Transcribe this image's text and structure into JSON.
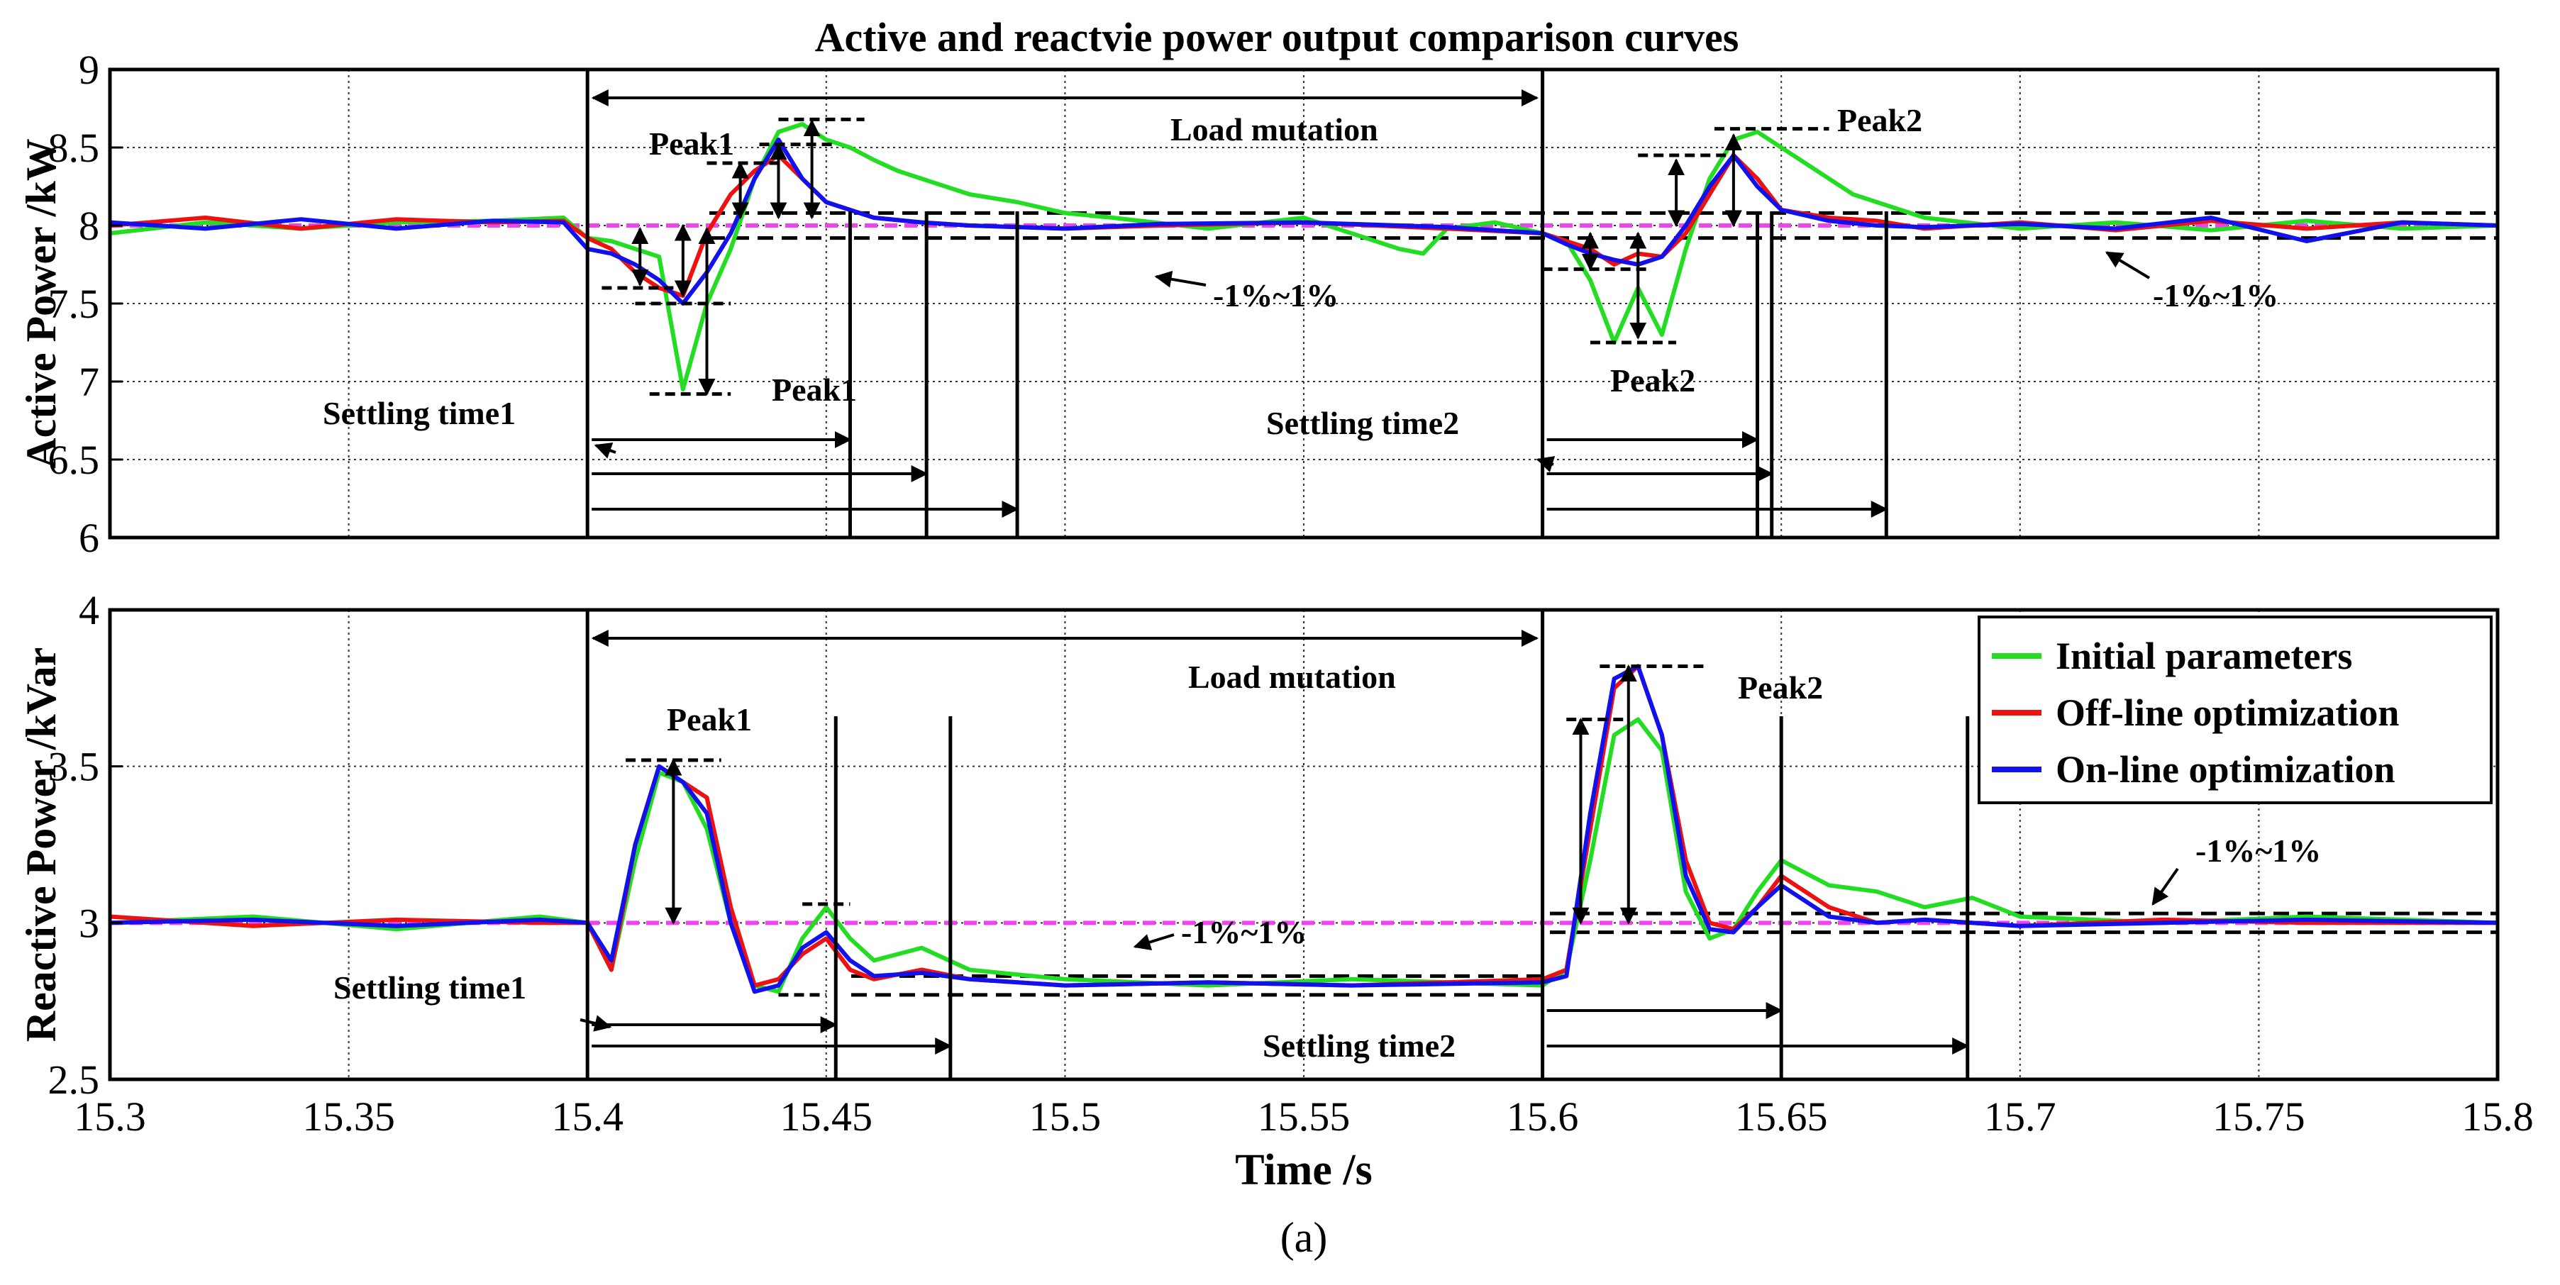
{
  "chart_data": {
    "type": "line",
    "title": "Active and reactvie power output comparison curves",
    "caption": "(a)",
    "xlabel": "Time /s",
    "x_ticks": [
      "15.3",
      "15.35",
      "15.4",
      "15.45",
      "15.5",
      "15.55",
      "15.6",
      "15.65",
      "15.7",
      "15.75",
      "15.8"
    ],
    "xlim": [
      15.3,
      15.8
    ],
    "grid": true,
    "legend": {
      "placement": "top-right of lower panel",
      "entries": [
        {
          "name": "Initial parameters",
          "color": "#22dd22"
        },
        {
          "name": "Off-line optimization",
          "color": "#ee1111"
        },
        {
          "name": "On-line optimization",
          "color": "#1111ee"
        }
      ]
    },
    "reference_color": "#ee44ee",
    "panels": [
      {
        "ylabel": "Active Power /kW",
        "ylim": [
          6,
          9
        ],
        "y_ticks": [
          "6",
          "6.5",
          "7",
          "7.5",
          "8",
          "8.5",
          "9"
        ],
        "reference": 8.0,
        "band": [
          7.92,
          8.08
        ],
        "series": [
          {
            "name": "Initial parameters",
            "color": "#22dd22",
            "x": [
              15.3,
              15.32,
              15.34,
              15.36,
              15.38,
              15.395,
              15.4,
              15.405,
              15.41,
              15.415,
              15.42,
              15.425,
              15.43,
              15.435,
              15.44,
              15.445,
              15.45,
              15.455,
              15.46,
              15.465,
              15.47,
              15.48,
              15.49,
              15.5,
              15.51,
              15.53,
              15.55,
              15.57,
              15.575,
              15.58,
              15.59,
              15.6,
              15.605,
              15.61,
              15.615,
              15.62,
              15.625,
              15.63,
              15.635,
              15.64,
              15.645,
              15.65,
              15.655,
              15.66,
              15.665,
              15.67,
              15.68,
              15.7,
              15.72,
              15.74,
              15.76,
              15.78,
              15.8
            ],
            "y": [
              7.95,
              8.02,
              7.98,
              8.02,
              8.03,
              8.05,
              7.92,
              7.9,
              7.85,
              7.8,
              6.95,
              7.5,
              7.85,
              8.3,
              8.6,
              8.65,
              8.55,
              8.5,
              8.42,
              8.35,
              8.3,
              8.2,
              8.15,
              8.08,
              8.05,
              7.98,
              8.05,
              7.85,
              7.82,
              7.98,
              8.02,
              7.95,
              7.9,
              7.65,
              7.25,
              7.6,
              7.3,
              7.85,
              8.3,
              8.55,
              8.6,
              8.5,
              8.4,
              8.3,
              8.2,
              8.15,
              8.05,
              7.98,
              8.02,
              7.97,
              8.03,
              7.98,
              8.0
            ]
          },
          {
            "name": "Off-line optimization",
            "color": "#ee1111",
            "x": [
              15.3,
              15.32,
              15.34,
              15.36,
              15.38,
              15.395,
              15.4,
              15.405,
              15.41,
              15.415,
              15.42,
              15.425,
              15.43,
              15.435,
              15.44,
              15.445,
              15.45,
              15.455,
              15.46,
              15.47,
              15.48,
              15.5,
              15.52,
              15.55,
              15.58,
              15.6,
              15.605,
              15.61,
              15.615,
              15.62,
              15.625,
              15.63,
              15.635,
              15.64,
              15.645,
              15.65,
              15.66,
              15.67,
              15.68,
              15.7,
              15.72,
              15.74,
              15.76,
              15.78,
              15.8
            ],
            "y": [
              8.0,
              8.05,
              7.98,
              8.04,
              8.02,
              8.03,
              7.92,
              7.85,
              7.7,
              7.6,
              7.55,
              7.95,
              8.2,
              8.35,
              8.45,
              8.3,
              8.15,
              8.1,
              8.05,
              8.02,
              8.0,
              7.98,
              8.0,
              8.02,
              7.98,
              7.95,
              7.9,
              7.85,
              7.75,
              7.82,
              7.8,
              7.95,
              8.2,
              8.45,
              8.3,
              8.1,
              8.05,
              8.03,
              7.98,
              8.02,
              7.97,
              8.03,
              7.98,
              8.02,
              8.0
            ]
          },
          {
            "name": "On-line optimization",
            "color": "#1111ee",
            "x": [
              15.3,
              15.32,
              15.34,
              15.36,
              15.38,
              15.395,
              15.4,
              15.405,
              15.41,
              15.415,
              15.42,
              15.425,
              15.43,
              15.435,
              15.44,
              15.445,
              15.45,
              15.455,
              15.46,
              15.47,
              15.48,
              15.5,
              15.52,
              15.55,
              15.58,
              15.6,
              15.605,
              15.61,
              15.615,
              15.62,
              15.625,
              15.63,
              15.635,
              15.64,
              15.645,
              15.65,
              15.66,
              15.67,
              15.68,
              15.7,
              15.72,
              15.74,
              15.76,
              15.78,
              15.8
            ],
            "y": [
              8.02,
              7.98,
              8.04,
              7.98,
              8.03,
              8.02,
              7.85,
              7.82,
              7.75,
              7.65,
              7.5,
              7.7,
              7.95,
              8.3,
              8.55,
              8.3,
              8.15,
              8.1,
              8.05,
              8.02,
              8.0,
              7.98,
              8.01,
              8.02,
              7.99,
              7.95,
              7.88,
              7.82,
              7.78,
              7.75,
              7.8,
              8.0,
              8.25,
              8.45,
              8.25,
              8.1,
              8.03,
              8.0,
              7.99,
              8.01,
              7.98,
              8.05,
              7.9,
              8.02,
              8.0
            ]
          }
        ],
        "annotations": {
          "load_mutation": "Load mutation",
          "peak1_upper": "Peak1",
          "peak1_lower": "Peak1",
          "peak2_upper": "Peak2",
          "peak2_lower": "Peak2",
          "band1": "-1%~1%",
          "band2": "-1%~1%",
          "settling1": "Settling time1",
          "settling2": "Settling time2"
        }
      },
      {
        "ylabel": "Reactive Power /kVar",
        "ylim": [
          2.5,
          4
        ],
        "y_ticks": [
          "2.5",
          "3",
          "3.5",
          "4"
        ],
        "reference": 3.0,
        "band1": [
          2.77,
          2.83
        ],
        "band2": [
          2.97,
          3.03
        ],
        "series": [
          {
            "name": "Initial parameters",
            "color": "#22dd22",
            "x": [
              15.3,
              15.33,
              15.36,
              15.39,
              15.4,
              15.405,
              15.41,
              15.415,
              15.42,
              15.425,
              15.43,
              15.435,
              15.44,
              15.445,
              15.45,
              15.455,
              15.46,
              15.47,
              15.48,
              15.5,
              15.53,
              15.56,
              15.6,
              15.605,
              15.61,
              15.615,
              15.62,
              15.625,
              15.63,
              15.635,
              15.64,
              15.645,
              15.65,
              15.66,
              15.67,
              15.68,
              15.69,
              15.7,
              15.73,
              15.76,
              15.8
            ],
            "y": [
              3.0,
              3.02,
              2.98,
              3.02,
              3.0,
              2.85,
              3.2,
              3.48,
              3.45,
              3.3,
              3.0,
              2.8,
              2.78,
              2.95,
              3.05,
              2.95,
              2.88,
              2.92,
              2.85,
              2.82,
              2.8,
              2.82,
              2.8,
              2.85,
              3.2,
              3.6,
              3.65,
              3.55,
              3.1,
              2.95,
              2.98,
              3.1,
              3.2,
              3.12,
              3.1,
              3.05,
              3.08,
              3.02,
              3.0,
              3.02,
              3.0
            ]
          },
          {
            "name": "Off-line optimization",
            "color": "#ee1111",
            "x": [
              15.3,
              15.33,
              15.36,
              15.39,
              15.4,
              15.405,
              15.41,
              15.415,
              15.42,
              15.425,
              15.43,
              15.435,
              15.44,
              15.445,
              15.45,
              15.455,
              15.46,
              15.47,
              15.48,
              15.5,
              15.53,
              15.56,
              15.6,
              15.605,
              15.61,
              15.615,
              15.62,
              15.625,
              15.63,
              15.635,
              15.64,
              15.645,
              15.65,
              15.66,
              15.67,
              15.68,
              15.7,
              15.73,
              15.76,
              15.8
            ],
            "y": [
              3.02,
              2.99,
              3.01,
              3.0,
              3.0,
              2.85,
              3.25,
              3.5,
              3.45,
              3.4,
              3.05,
              2.8,
              2.82,
              2.9,
              2.95,
              2.85,
              2.82,
              2.85,
              2.82,
              2.8,
              2.81,
              2.8,
              2.82,
              2.85,
              3.3,
              3.75,
              3.82,
              3.6,
              3.2,
              3.0,
              2.98,
              3.05,
              3.15,
              3.05,
              3.0,
              3.01,
              2.99,
              3.01,
              3.0,
              3.0
            ]
          },
          {
            "name": "On-line optimization",
            "color": "#1111ee",
            "x": [
              15.3,
              15.33,
              15.36,
              15.39,
              15.4,
              15.405,
              15.41,
              15.415,
              15.42,
              15.425,
              15.43,
              15.435,
              15.44,
              15.445,
              15.45,
              15.455,
              15.46,
              15.47,
              15.48,
              15.5,
              15.53,
              15.56,
              15.6,
              15.605,
              15.61,
              15.615,
              15.62,
              15.625,
              15.63,
              15.635,
              15.64,
              15.645,
              15.65,
              15.66,
              15.67,
              15.68,
              15.7,
              15.73,
              15.76,
              15.8
            ],
            "y": [
              3.0,
              3.01,
              2.99,
              3.01,
              3.0,
              2.88,
              3.25,
              3.5,
              3.45,
              3.35,
              3.0,
              2.78,
              2.8,
              2.92,
              2.97,
              2.88,
              2.83,
              2.84,
              2.82,
              2.8,
              2.81,
              2.8,
              2.81,
              2.83,
              3.35,
              3.78,
              3.82,
              3.6,
              3.15,
              2.98,
              2.97,
              3.05,
              3.12,
              3.02,
              3.0,
              3.01,
              2.99,
              3.0,
              3.01,
              3.0
            ]
          }
        ],
        "annotations": {
          "load_mutation": "Load mutation",
          "peak1": "Peak1",
          "peak2": "Peak2",
          "band1": "-1%~1%",
          "band2": "-1%~1%",
          "settling1": "Settling time1",
          "settling2": "Settling time2"
        }
      }
    ]
  }
}
